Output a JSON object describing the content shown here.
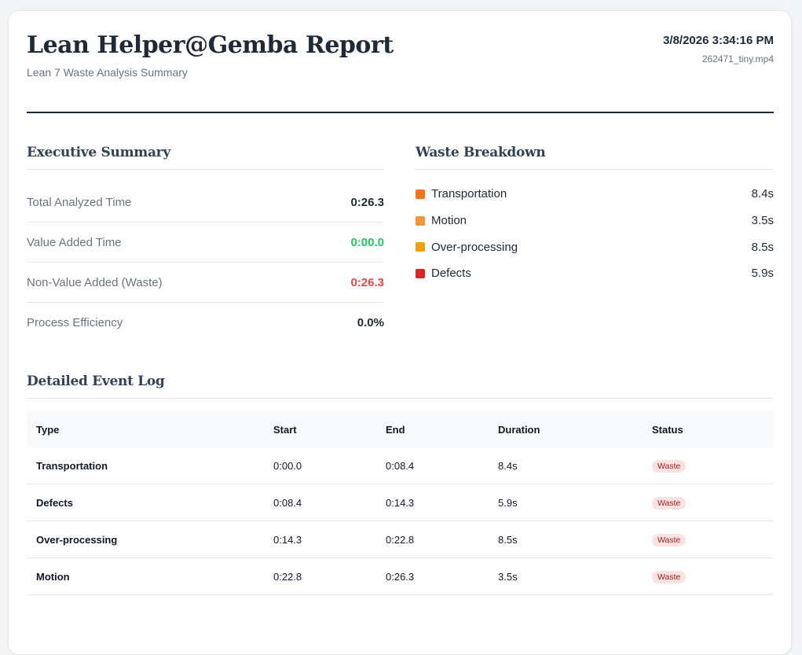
{
  "report": {
    "title": "Lean Helper@Gemba Report",
    "subtitle": "Lean 7 Waste Analysis Summary",
    "datetime": "3/8/2026 3:34:16 PM",
    "filename": "262471_tiny.mp4"
  },
  "executive_summary": {
    "heading": "Executive Summary",
    "rows": [
      {
        "label": "Total Analyzed Time",
        "value": "0:26.3",
        "tone": "default"
      },
      {
        "label": "Value Added Time",
        "value": "0:00.0",
        "tone": "green"
      },
      {
        "label": "Non-Value Added (Waste)",
        "value": "0:26.3",
        "tone": "red"
      },
      {
        "label": "Process Efficiency",
        "value": "0.0%",
        "tone": "default"
      }
    ]
  },
  "waste_breakdown": {
    "heading": "Waste Breakdown",
    "items": [
      {
        "name": "Transportation",
        "value": "8.4s",
        "color": "#f97316"
      },
      {
        "name": "Motion",
        "value": "3.5s",
        "color": "#fb923c"
      },
      {
        "name": "Over-processing",
        "value": "8.5s",
        "color": "#f59e0b"
      },
      {
        "name": "Defects",
        "value": "5.9s",
        "color": "#dc2626"
      }
    ]
  },
  "event_log": {
    "heading": "Detailed Event Log",
    "columns": [
      "Type",
      "Start",
      "End",
      "Duration",
      "Status"
    ],
    "rows": [
      {
        "type": "Transportation",
        "start": "0:00.0",
        "end": "0:08.4",
        "duration": "8.4s",
        "status": "Waste"
      },
      {
        "type": "Defects",
        "start": "0:08.4",
        "end": "0:14.3",
        "duration": "5.9s",
        "status": "Waste"
      },
      {
        "type": "Over-processing",
        "start": "0:14.3",
        "end": "0:22.8",
        "duration": "8.5s",
        "status": "Waste"
      },
      {
        "type": "Motion",
        "start": "0:22.8",
        "end": "0:26.3",
        "duration": "3.5s",
        "status": "Waste"
      }
    ]
  }
}
